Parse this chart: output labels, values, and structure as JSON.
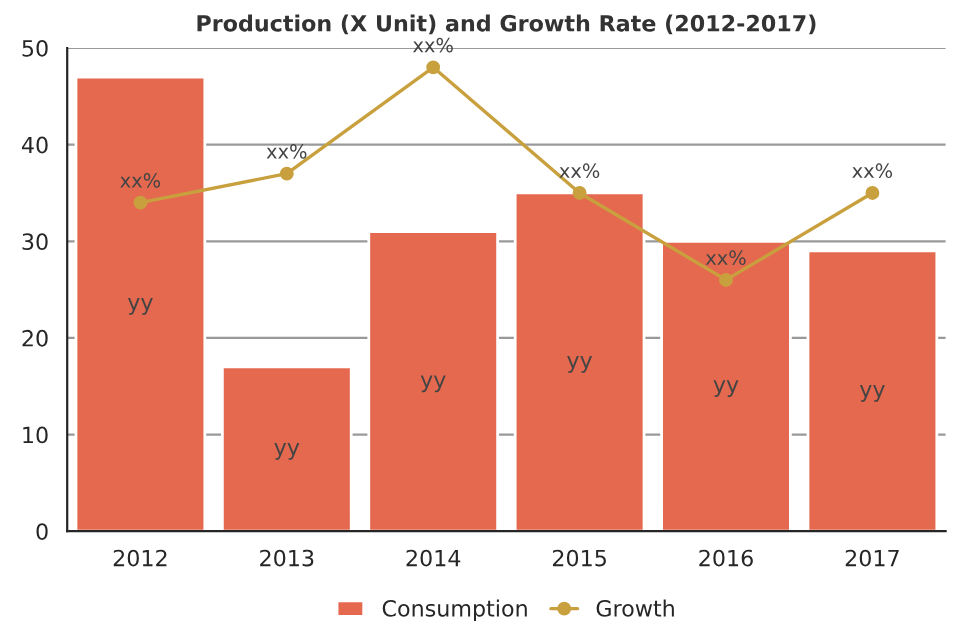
{
  "chart_data": {
    "type": "bar",
    "title": "Production (X Unit) and Growth Rate (2012-2017)",
    "categories": [
      "2012",
      "2013",
      "2014",
      "2015",
      "2016",
      "2017"
    ],
    "series": [
      {
        "name": "Consumption",
        "color": "#e5694f",
        "values": [
          47,
          17,
          31,
          35,
          30,
          29
        ],
        "value_labels": [
          "yy",
          "yy",
          "yy",
          "yy",
          "yy",
          "yy"
        ]
      },
      {
        "name": "Growth",
        "type": "line",
        "color": "#c9a03e",
        "marker": "circle",
        "values": [
          34,
          37,
          48,
          35,
          26,
          35
        ],
        "value_labels": [
          "xx%",
          "xx%",
          "xx%",
          "xx%",
          "xx%",
          "xx%"
        ]
      }
    ],
    "ylim": [
      0,
      50
    ],
    "yticks": [
      0,
      10,
      20,
      30,
      40,
      50
    ],
    "grid": "y",
    "legend": "bottom"
  }
}
